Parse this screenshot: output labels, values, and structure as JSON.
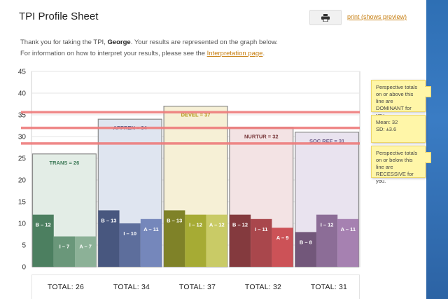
{
  "page": {
    "title": "TPI Profile Sheet",
    "print_link": "print (shows preview)",
    "intro_line1_prefix": "Thank you for taking the TPI, ",
    "user_name": "George",
    "intro_line1_suffix": ". Your results are represented on the graph below.",
    "intro_line2_prefix": "For information on how to interpret your results, please see the ",
    "interpretation_link": "Interpretation page",
    "intro_line2_suffix": "."
  },
  "icons": {
    "print": "printer-icon"
  },
  "notes": {
    "dominant": "Perspective totals on or above this line are DOMINANT for you.",
    "mean": "Mean: 32",
    "sd": "SD: ±3.6",
    "recessive": "Perspective totals on or below this line are RECESSIVE for you."
  },
  "chart_data": {
    "type": "bar",
    "ylim": [
      0,
      45
    ],
    "yticks": [
      0,
      5,
      10,
      15,
      20,
      25,
      30,
      35,
      40,
      45
    ],
    "grid": true,
    "reference_lines": [
      35.6,
      32,
      28.4
    ],
    "reference_color": "#ee7c7c",
    "perspectives": [
      {
        "label": "TRANS = 26",
        "total": 26,
        "total_label": "TOTAL: 26",
        "bg": "#e3ede6",
        "label_color": "#3e7a58",
        "bars": [
          {
            "label": "B – 12",
            "value": 12,
            "color": "#4c7f60"
          },
          {
            "label": "I – 7",
            "value": 7,
            "color": "#6a977a"
          },
          {
            "label": "A – 7",
            "value": 7,
            "color": "#8cb197"
          }
        ]
      },
      {
        "label": "APPREN = 34",
        "total": 34,
        "total_label": "TOTAL: 34",
        "bg": "#dfe5f0",
        "label_color": "#4a5e8e",
        "bars": [
          {
            "label": "B – 13",
            "value": 13,
            "color": "#48577f"
          },
          {
            "label": "I – 10",
            "value": 10,
            "color": "#5d6e9c"
          },
          {
            "label": "A – 11",
            "value": 11,
            "color": "#7587bb"
          }
        ]
      },
      {
        "label": "DEVEL = 37",
        "total": 37,
        "total_label": "TOTAL: 37",
        "bg": "#f6f0d6",
        "label_color": "#b09a1c",
        "bars": [
          {
            "label": "B – 13",
            "value": 13,
            "color": "#7f8228"
          },
          {
            "label": "I – 12",
            "value": 12,
            "color": "#a6ab34"
          },
          {
            "label": "A – 12",
            "value": 12,
            "color": "#c9cb66"
          }
        ]
      },
      {
        "label": "NURTUR = 32",
        "total": 32,
        "total_label": "TOTAL: 32",
        "bg": "#f3e3e4",
        "label_color": "#7a3a3d",
        "bars": [
          {
            "label": "B – 12",
            "value": 12,
            "color": "#843a3e"
          },
          {
            "label": "I – 11",
            "value": 11,
            "color": "#a9474c"
          },
          {
            "label": "A – 9",
            "value": 9,
            "color": "#cc5257"
          }
        ]
      },
      {
        "label": "SOC REF = 31",
        "total": 31,
        "total_label": "TOTAL: 31",
        "bg": "#e9e3ef",
        "label_color": "#6b5a86",
        "bars": [
          {
            "label": "B – 8",
            "value": 8,
            "color": "#72577a"
          },
          {
            "label": "I – 12",
            "value": 12,
            "color": "#8c6d97"
          },
          {
            "label": "A – 11",
            "value": 11,
            "color": "#a681b1"
          }
        ]
      }
    ]
  }
}
